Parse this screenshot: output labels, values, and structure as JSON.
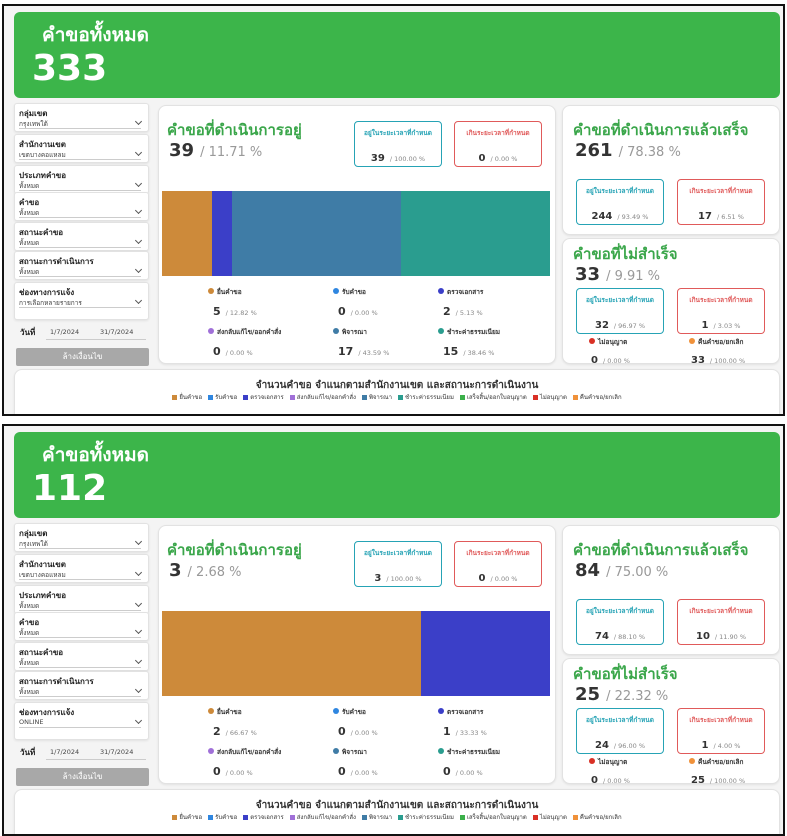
{
  "dashboards": [
    {
      "header": {
        "title": "คำขอทั้งหมด",
        "total": 333
      },
      "filters": [
        {
          "label": "กลุ่มเขต",
          "value": "กรุงเทพใต้"
        },
        {
          "label": "สำนักงานเขต",
          "value": "เขตบางคอแหลม"
        },
        {
          "label": "ประเภทคำขอ",
          "value": "ทั้งหมด"
        },
        {
          "label": "คำขอ",
          "value": "ทั้งหมด"
        },
        {
          "label": "สถานะคำขอ",
          "value": "ทั้งหมด"
        },
        {
          "label": "สถานะการดำเนินการ",
          "value": "ทั้งหมด"
        },
        {
          "label": "ช่องทางการแจ้ง",
          "value": "การเลือกหลายรายการ"
        }
      ],
      "date": {
        "label": "วันที่",
        "start": "1/7/2024",
        "end": "31/7/2024"
      },
      "clear_button": "ล้างเงื่อนไข",
      "in_progress": {
        "title": "คำขอที่ดำเนินการอยู่",
        "count": 39,
        "percent": "/ 11.71 %",
        "on_time": {
          "label": "อยู่ในระยะเวลาที่กำหนด",
          "count": 39,
          "percent": "/ 100.00 %"
        },
        "overdue": {
          "label": "เกินระยะเวลาที่กำหนด",
          "count": 0,
          "percent": "/ 0.00 %"
        },
        "stages": [
          {
            "label": "ยื่นคำขอ",
            "color": "#cd8a3a",
            "count": 5,
            "percent": "/ 12.82 %"
          },
          {
            "label": "รับคำขอ",
            "color": "#2f86e0",
            "count": 0,
            "percent": "/ 0.00 %"
          },
          {
            "label": "ตรวจเอกสาร",
            "color": "#3b3fc8",
            "count": 2,
            "percent": "/ 5.13 %"
          },
          {
            "label": "ส่งกลับแก้ไข/ออกคำสั่ง",
            "color": "#a070d8",
            "count": 0,
            "percent": "/ 0.00 %"
          },
          {
            "label": "พิจารณา",
            "color": "#3f7ca6",
            "count": 17,
            "percent": "/ 43.59 %"
          },
          {
            "label": "ชำระค่าธรรมเนียม",
            "color": "#2a9d8f",
            "count": 15,
            "percent": "/ 38.46 %"
          }
        ]
      },
      "completed": {
        "title": "คำขอที่ดำเนินการแล้วเสร็จ",
        "count": 261,
        "percent": "/ 78.38 %",
        "on_time": {
          "label": "อยู่ในระยะเวลาที่กำหนด",
          "count": 244,
          "percent": "/ 93.49 %"
        },
        "overdue": {
          "label": "เกินระยะเวลาที่กำหนด",
          "count": 17,
          "percent": "/ 6.51 %"
        }
      },
      "failed": {
        "title": "คำขอที่ไม่สำเร็จ",
        "count": 33,
        "percent": "/ 9.91 %",
        "on_time": {
          "label": "อยู่ในระยะเวลาที่กำหนด",
          "count": 32,
          "percent": "/ 96.97 %"
        },
        "overdue": {
          "label": "เกินระยะเวลาที่กำหนด",
          "count": 1,
          "percent": "/ 3.03 %"
        },
        "outcomes": [
          {
            "label": "ไม่อนุญาต",
            "color": "#d93025",
            "count": 0,
            "percent": "/ 0.00 %"
          },
          {
            "label": "คืนคำขอ/ยกเลิก",
            "color": "#f0913a",
            "count": 33,
            "percent": "/ 100.00 %"
          }
        ]
      },
      "district_chart": {
        "title": "จำนวนคำขอ  จำแนกตามสำนักงานเขต และสถานะการดำเนินงาน",
        "legend": [
          {
            "label": "ยื่นคำขอ",
            "color": "#cd8a3a"
          },
          {
            "label": "รับคำขอ",
            "color": "#2f86e0"
          },
          {
            "label": "ตรวจเอกสาร",
            "color": "#3b3fc8"
          },
          {
            "label": "ส่งกลับแก้ไข/ออกคำสั่ง",
            "color": "#a070d8"
          },
          {
            "label": "พิจารณา",
            "color": "#3f7ca6"
          },
          {
            "label": "ชำระค่าธรรมเนียม",
            "color": "#2a9d8f"
          },
          {
            "label": "เสร็จสิ้น/ออกใบอนุญาต",
            "color": "#3bb04a"
          },
          {
            "label": "ไม่อนุญาต",
            "color": "#d93025"
          },
          {
            "label": "คืนคำขอ/ยกเลิก",
            "color": "#f0913a"
          }
        ]
      }
    },
    {
      "header": {
        "title": "คำขอทั้งหมด",
        "total": 112
      },
      "filters": [
        {
          "label": "กลุ่มเขต",
          "value": "กรุงเทพใต้"
        },
        {
          "label": "สำนักงานเขต",
          "value": "เขตบางคอแหลม"
        },
        {
          "label": "ประเภทคำขอ",
          "value": "ทั้งหมด"
        },
        {
          "label": "คำขอ",
          "value": "ทั้งหมด"
        },
        {
          "label": "สถานะคำขอ",
          "value": "ทั้งหมด"
        },
        {
          "label": "สถานะการดำเนินการ",
          "value": "ทั้งหมด"
        },
        {
          "label": "ช่องทางการแจ้ง",
          "value": "ONLINE"
        }
      ],
      "date": {
        "label": "วันที่",
        "start": "1/7/2024",
        "end": "31/7/2024"
      },
      "clear_button": "ล้างเงื่อนไข",
      "in_progress": {
        "title": "คำขอที่ดำเนินการอยู่",
        "count": 3,
        "percent": "/ 2.68 %",
        "on_time": {
          "label": "อยู่ในระยะเวลาที่กำหนด",
          "count": 3,
          "percent": "/ 100.00 %"
        },
        "overdue": {
          "label": "เกินระยะเวลาที่กำหนด",
          "count": 0,
          "percent": "/ 0.00 %"
        },
        "stages": [
          {
            "label": "ยื่นคำขอ",
            "color": "#cd8a3a",
            "count": 2,
            "percent": "/ 66.67 %"
          },
          {
            "label": "รับคำขอ",
            "color": "#2f86e0",
            "count": 0,
            "percent": "/ 0.00 %"
          },
          {
            "label": "ตรวจเอกสาร",
            "color": "#3b3fc8",
            "count": 1,
            "percent": "/ 33.33 %"
          },
          {
            "label": "ส่งกลับแก้ไข/ออกคำสั่ง",
            "color": "#a070d8",
            "count": 0,
            "percent": "/ 0.00 %"
          },
          {
            "label": "พิจารณา",
            "color": "#3f7ca6",
            "count": 0,
            "percent": "/ 0.00 %"
          },
          {
            "label": "ชำระค่าธรรมเนียม",
            "color": "#2a9d8f",
            "count": 0,
            "percent": "/ 0.00 %"
          }
        ]
      },
      "completed": {
        "title": "คำขอที่ดำเนินการแล้วเสร็จ",
        "count": 84,
        "percent": "/ 75.00 %",
        "on_time": {
          "label": "อยู่ในระยะเวลาที่กำหนด",
          "count": 74,
          "percent": "/ 88.10 %"
        },
        "overdue": {
          "label": "เกินระยะเวลาที่กำหนด",
          "count": 10,
          "percent": "/ 11.90 %"
        }
      },
      "failed": {
        "title": "คำขอที่ไม่สำเร็จ",
        "count": 25,
        "percent": "/ 22.32 %",
        "on_time": {
          "label": "อยู่ในระยะเวลาที่กำหนด",
          "count": 24,
          "percent": "/ 96.00 %"
        },
        "overdue": {
          "label": "เกินระยะเวลาที่กำหนด",
          "count": 1,
          "percent": "/ 4.00 %"
        },
        "outcomes": [
          {
            "label": "ไม่อนุญาต",
            "color": "#d93025",
            "count": 0,
            "percent": "/ 0.00 %"
          },
          {
            "label": "คืนคำขอ/ยกเลิก",
            "color": "#f0913a",
            "count": 25,
            "percent": "/ 100.00 %"
          }
        ]
      },
      "district_chart": {
        "title": "จำนวนคำขอ  จำแนกตามสำนักงานเขต และสถานะการดำเนินงาน",
        "legend": [
          {
            "label": "ยื่นคำขอ",
            "color": "#cd8a3a"
          },
          {
            "label": "รับคำขอ",
            "color": "#2f86e0"
          },
          {
            "label": "ตรวจเอกสาร",
            "color": "#3b3fc8"
          },
          {
            "label": "ส่งกลับแก้ไข/ออกคำสั่ง",
            "color": "#a070d8"
          },
          {
            "label": "พิจารณา",
            "color": "#3f7ca6"
          },
          {
            "label": "ชำระค่าธรรมเนียม",
            "color": "#2a9d8f"
          },
          {
            "label": "เสร็จสิ้น/ออกใบอนุญาต",
            "color": "#3bb04a"
          },
          {
            "label": "ไม่อนุญาต",
            "color": "#d93025"
          },
          {
            "label": "คืนคำขอ/ยกเลิก",
            "color": "#f0913a"
          }
        ]
      }
    }
  ]
}
